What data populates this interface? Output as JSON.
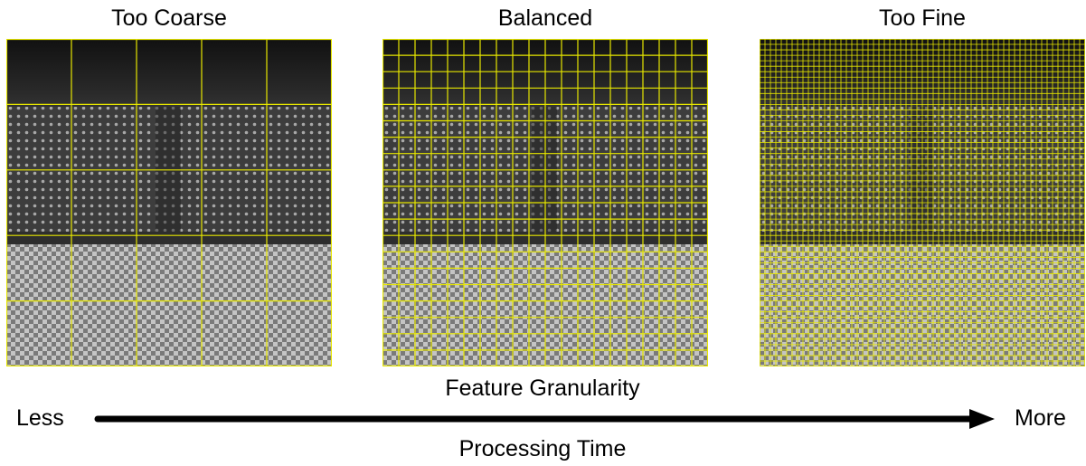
{
  "panels": [
    {
      "title": "Too Coarse",
      "grid_cols": 5,
      "grid_rows": 5
    },
    {
      "title": "Balanced",
      "grid_cols": 20,
      "grid_rows": 20
    },
    {
      "title": "Too Fine",
      "grid_cols": 60,
      "grid_rows": 60
    }
  ],
  "axis": {
    "top_label": "Feature Granularity",
    "bottom_label": "Processing Time",
    "left_label": "Less",
    "right_label": "More"
  },
  "colors": {
    "grid_line": "#e6e600",
    "arrow": "#000000"
  }
}
